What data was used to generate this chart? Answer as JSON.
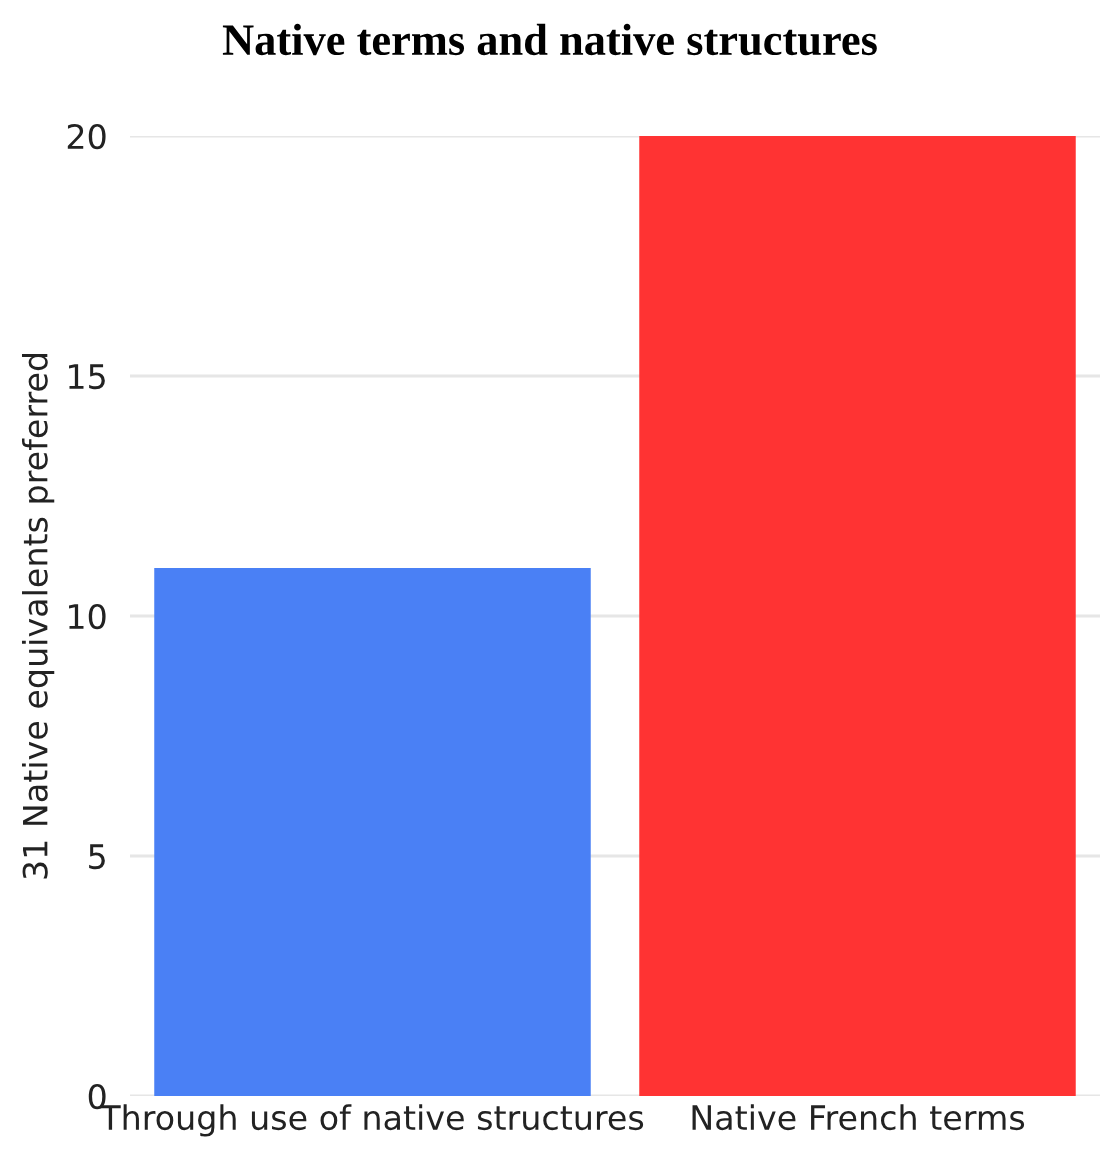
{
  "chart_data": {
    "type": "bar",
    "title": "Native terms and native structures",
    "ylabel": "31 Native equivalents preferred",
    "categories": [
      "Through use of native structures",
      "Native French terms"
    ],
    "values": [
      11,
      20
    ],
    "colors": [
      "#4a80f5",
      "#ff3333"
    ],
    "ylim": [
      0,
      20
    ],
    "yticks": [
      0,
      5,
      10,
      15,
      20
    ],
    "grid": "y",
    "legend": false
  }
}
